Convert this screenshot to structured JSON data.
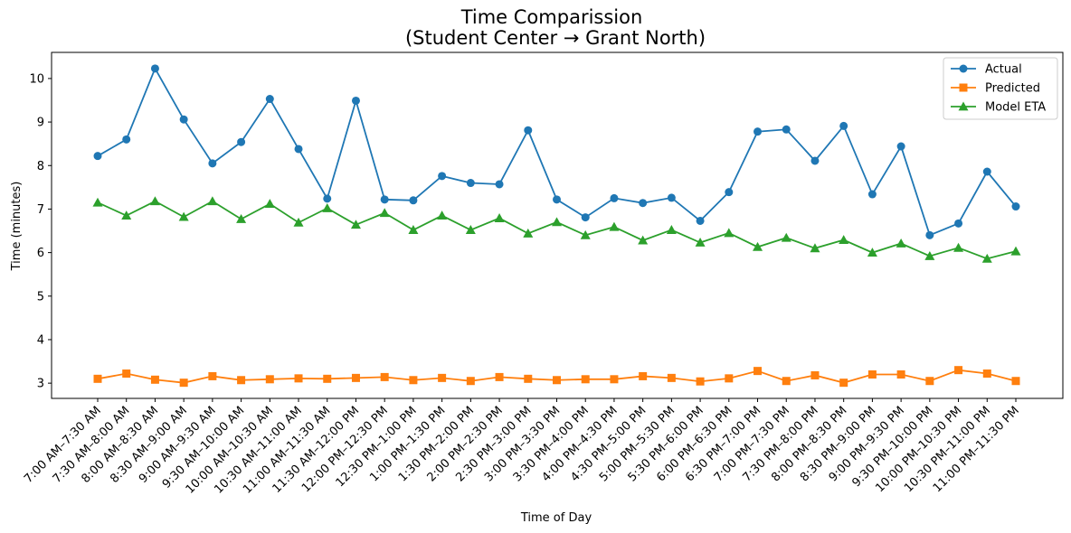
{
  "chart_data": {
    "type": "line",
    "title_line1": "Time Comparission",
    "title_line2": "(Student Center → Grant North)",
    "xlabel": "Time of Day",
    "ylabel": "Time (minutes)",
    "ylim": [
      2.65,
      10.6
    ],
    "yticks": [
      "3",
      "4",
      "5",
      "6",
      "7",
      "8",
      "9",
      "10"
    ],
    "legend_position": "top-right",
    "categories": [
      "7:00 AM–7:30 AM",
      "7:30 AM–8:00 AM",
      "8:00 AM–8:30 AM",
      "8:30 AM–9:00 AM",
      "9:00 AM–9:30 AM",
      "9:30 AM–10:00 AM",
      "10:00 AM–10:30 AM",
      "10:30 AM–11:00 AM",
      "11:00 AM–11:30 AM",
      "11:30 AM–12:00 PM",
      "12:00 PM–12:30 PM",
      "12:30 PM–1:00 PM",
      "1:00 PM–1:30 PM",
      "1:30 PM–2:00 PM",
      "2:00 PM–2:30 PM",
      "2:30 PM–3:00 PM",
      "3:00 PM–3:30 PM",
      "3:30 PM–4:00 PM",
      "4:00 PM–4:30 PM",
      "4:30 PM–5:00 PM",
      "5:00 PM–5:30 PM",
      "5:30 PM–6:00 PM",
      "6:00 PM–6:30 PM",
      "6:30 PM–7:00 PM",
      "7:00 PM–7:30 PM",
      "7:30 PM–8:00 PM",
      "8:00 PM–8:30 PM",
      "8:30 PM–9:00 PM",
      "9:00 PM–9:30 PM",
      "9:30 PM–10:00 PM",
      "10:00 PM–10:30 PM",
      "10:30 PM–11:00 PM",
      "11:00 PM–11:30 PM"
    ],
    "series": [
      {
        "name": "Actual",
        "color": "#1f77b4",
        "marker": "circle",
        "values": [
          8.22,
          8.6,
          10.23,
          9.06,
          8.05,
          8.54,
          9.53,
          8.38,
          7.24,
          9.49,
          7.22,
          7.2,
          7.76,
          7.6,
          7.57,
          8.81,
          7.22,
          6.81,
          7.25,
          7.14,
          7.26,
          6.73,
          7.39,
          8.78,
          8.83,
          8.11,
          8.91,
          7.34,
          8.44,
          6.4,
          6.67,
          7.86,
          7.06
        ]
      },
      {
        "name": "Predicted",
        "color": "#ff7f0e",
        "marker": "square",
        "values": [
          3.1,
          3.22,
          3.08,
          3.01,
          3.16,
          3.07,
          3.09,
          3.11,
          3.1,
          3.12,
          3.14,
          3.07,
          3.12,
          3.05,
          3.14,
          3.1,
          3.07,
          3.09,
          3.09,
          3.16,
          3.12,
          3.04,
          3.11,
          3.28,
          3.05,
          3.18,
          3.01,
          3.2,
          3.2,
          3.05,
          3.3,
          3.22,
          3.05
        ]
      },
      {
        "name": "Model ETA",
        "color": "#2ca02c",
        "marker": "triangle",
        "values": [
          7.15,
          6.85,
          7.18,
          6.82,
          7.18,
          6.77,
          7.12,
          6.69,
          7.02,
          6.64,
          6.91,
          6.52,
          6.85,
          6.52,
          6.79,
          6.44,
          6.7,
          6.4,
          6.59,
          6.28,
          6.52,
          6.23,
          6.45,
          6.13,
          6.34,
          6.1,
          6.29,
          6.0,
          6.21,
          5.92,
          6.11,
          5.86,
          6.03
        ]
      }
    ]
  }
}
